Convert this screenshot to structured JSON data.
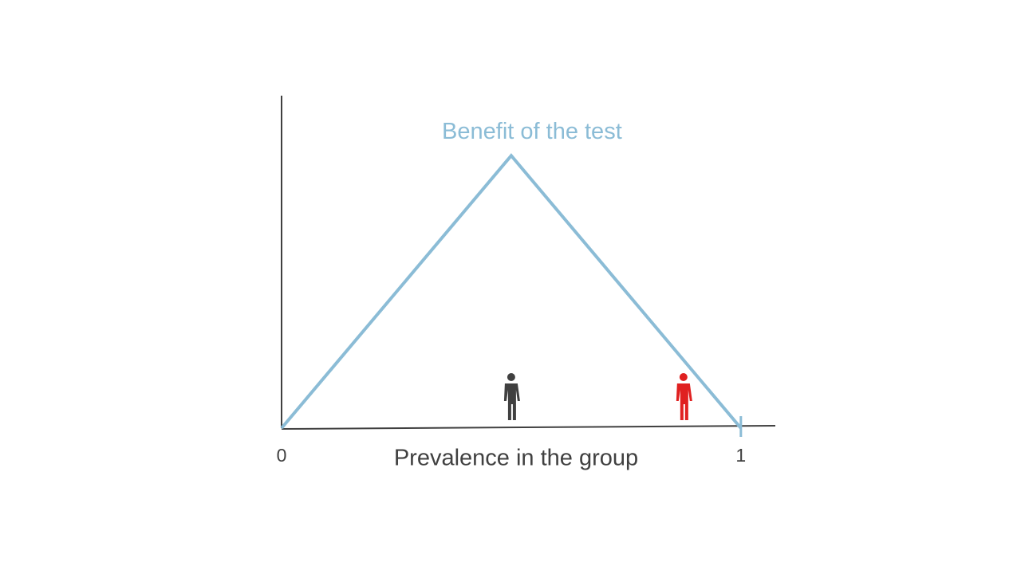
{
  "chart_data": {
    "type": "line",
    "x": [
      0,
      0.5,
      1
    ],
    "series": [
      {
        "name": "Benefit of the test",
        "color": "#8bbcd6",
        "values": [
          0,
          1,
          0
        ]
      }
    ],
    "xlabel": "Prevalence in the group",
    "xlim": [
      0,
      1.075
    ],
    "xticks": [
      0,
      1
    ],
    "ylim": [
      0,
      1.22
    ],
    "markers": [
      {
        "x": 0.5,
        "color": "#404040"
      },
      {
        "x": 0.875,
        "color": "#e02020"
      }
    ],
    "grid": false
  }
}
